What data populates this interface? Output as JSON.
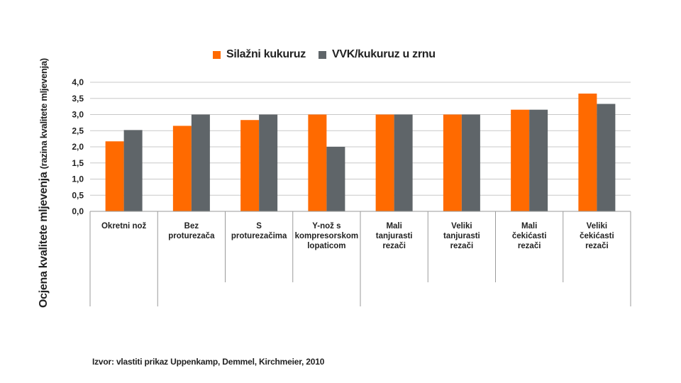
{
  "chart_data": {
    "type": "bar",
    "ylabel": "Ocjena kvalitete mljevenja",
    "ylabel_sub": "(razina kvalitete mljevenja)",
    "ylim": [
      0,
      4.0
    ],
    "yticks": [
      "0,0",
      "0,5",
      "1,0",
      "1,5",
      "2,0",
      "2,5",
      "3,0",
      "3,5",
      "4,0"
    ],
    "grid": true,
    "legend_position": "top",
    "categories": [
      [
        "Okretni nož"
      ],
      [
        "Bez",
        "proturezača"
      ],
      [
        "S",
        "proturezačima"
      ],
      [
        "Y-nož s",
        "kompresorskom",
        "lopaticom"
      ],
      [
        "Mali",
        "tanjurasti",
        "rezači"
      ],
      [
        "Veliki",
        "tanjurasti",
        "rezači"
      ],
      [
        "Mali",
        "čekićasti",
        "rezači"
      ],
      [
        "Veliki",
        "čekićasti",
        "rezači"
      ]
    ],
    "series": [
      {
        "name": "Silažni kukuruz",
        "color": "#ff6a00",
        "values": [
          2.17,
          2.65,
          2.83,
          3.0,
          3.0,
          3.0,
          3.15,
          3.65
        ]
      },
      {
        "name": "VVK/kukuruz u zrnu",
        "color": "#5f6569",
        "values": [
          2.52,
          3.0,
          3.0,
          2.0,
          3.0,
          3.0,
          3.15,
          3.33
        ]
      }
    ]
  },
  "source": "Izvor: vlastiti prikaz Uppenkamp, Demmel,  Kirchmeier, 2010"
}
